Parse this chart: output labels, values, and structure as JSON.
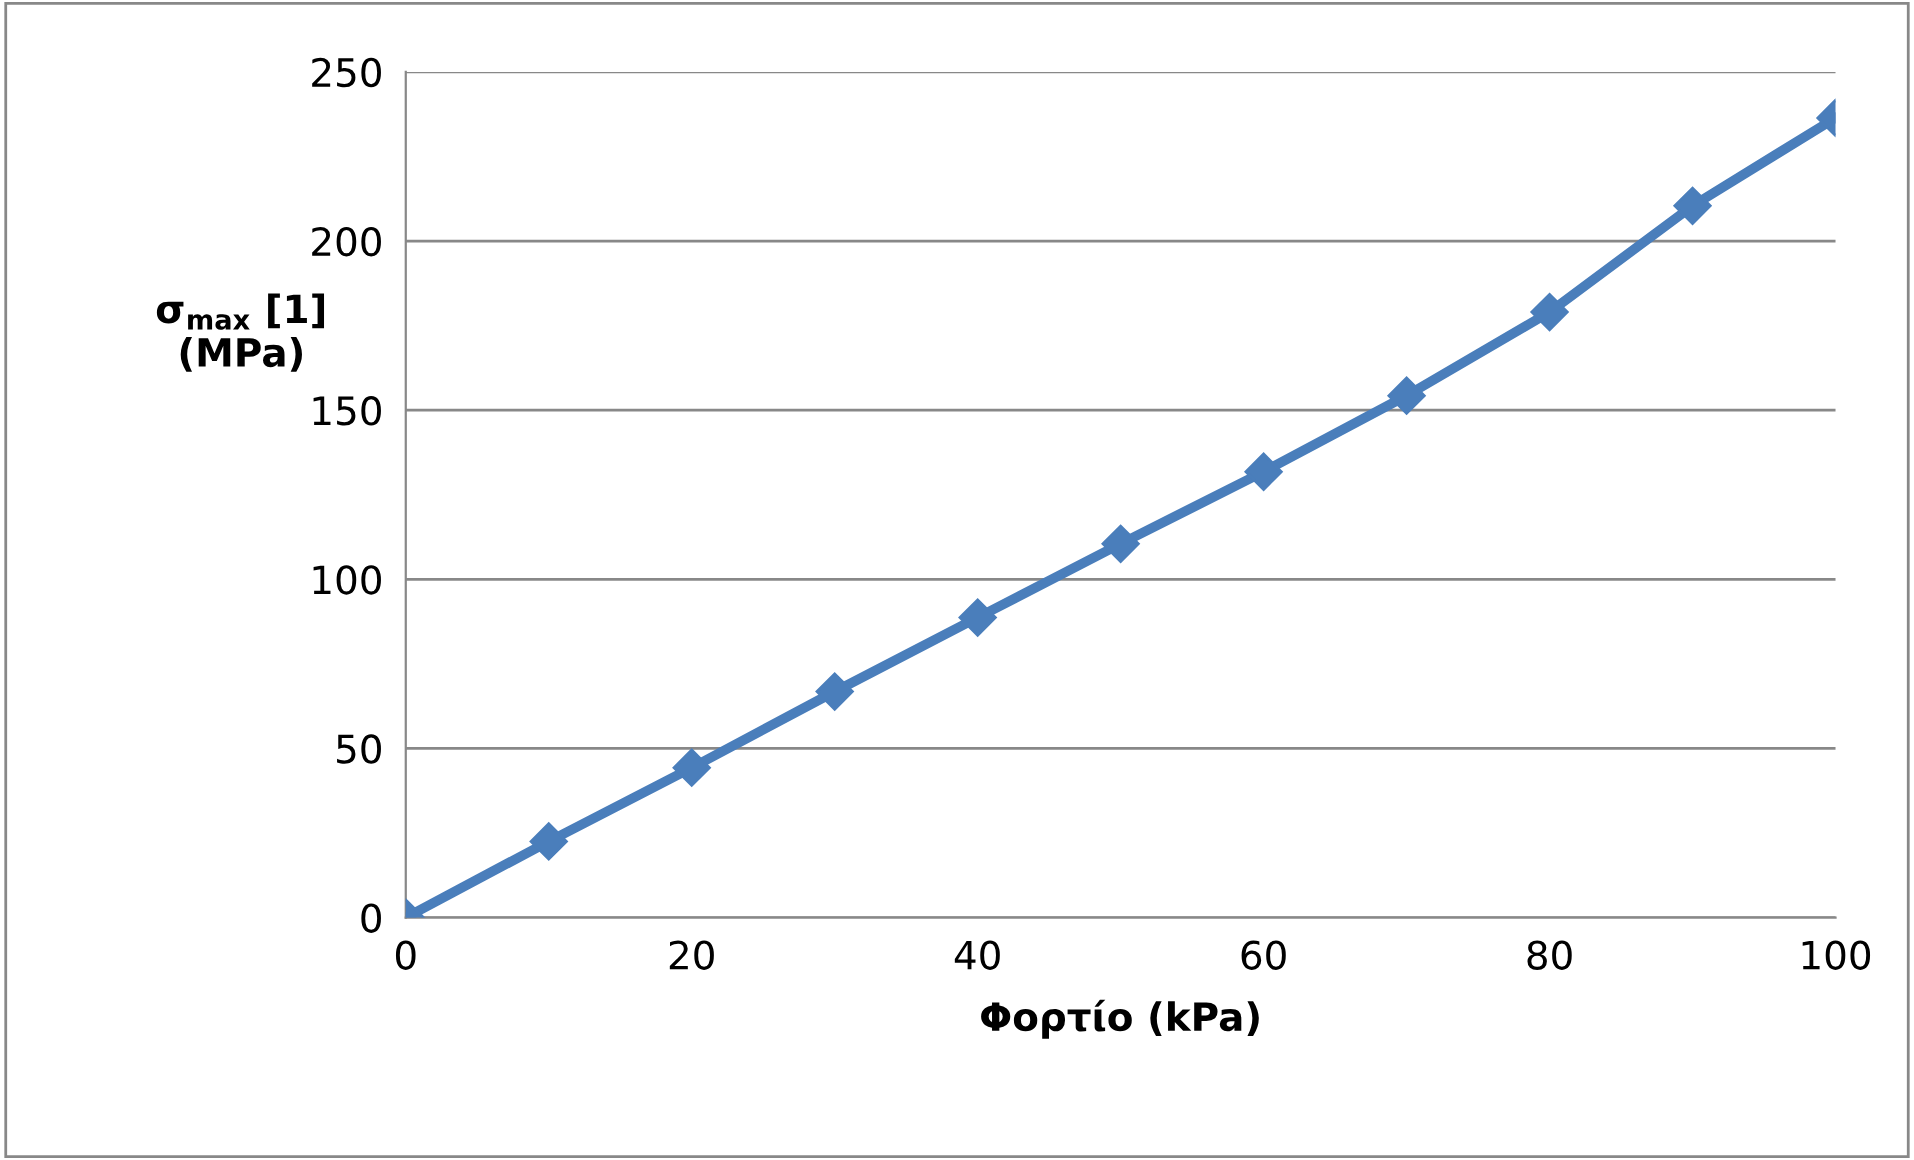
{
  "chart_data": {
    "type": "line",
    "xlabel": "Φορτίο (kPa)",
    "ylabel": "σ$_{max}$ [1]\n(MPa)",
    "x": [
      0,
      10,
      20,
      30,
      40,
      50,
      60,
      70,
      80,
      90,
      100
    ],
    "series": [
      {
        "color": "#4a7ebb",
        "values": [
          0,
          22.5,
          44.3,
          66.8,
          88.7,
          110.5,
          131.8,
          154.3,
          179,
          210.4,
          236.4
        ]
      }
    ],
    "xlim": [
      0,
      100
    ],
    "xticks": [
      0,
      20,
      40,
      60,
      80,
      100
    ],
    "ylim": [
      0,
      250
    ],
    "yticks": [
      0,
      50,
      100,
      150,
      200,
      250
    ],
    "grid": "y",
    "marker": "diamond",
    "line_style": "solid"
  }
}
